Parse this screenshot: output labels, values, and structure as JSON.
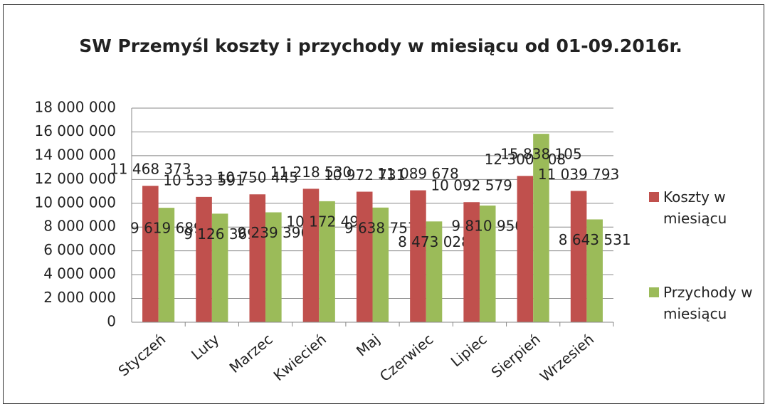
{
  "chart_data": {
    "type": "bar",
    "title": "SW Przemyśl  koszty i przychody w miesiącu od 01-09.2016r.",
    "categories": [
      "Styczeń",
      "Luty",
      "Marzec",
      "Kwiecień",
      "Maj",
      "Czerwiec",
      "Lipiec",
      "Sierpień",
      "Wrzesień"
    ],
    "series": [
      {
        "name": "Koszty w miesiącu",
        "color": "#c0504d",
        "values": [
          11468373,
          10533591,
          10750445,
          11218530,
          10972731,
          11089678,
          10092579,
          12300008,
          11039793
        ],
        "value_labels": [
          "11 468 373",
          "10 533 591",
          "10 750 445",
          "11 218 530",
          "10 972 731",
          "11 089 678",
          "10 092 579",
          "12 300 008",
          "11 039 793"
        ]
      },
      {
        "name": "Przychody w miesiącu",
        "color": "#9bbb59",
        "values": [
          9619689,
          9126369,
          9239396,
          10172491,
          9638757,
          8473028,
          9810950,
          15838105,
          8643531
        ],
        "value_labels": [
          "9 619 689",
          "9 126 369",
          "9 239 396",
          "10 172 491",
          "9 638 757",
          "8 473 028",
          "9 810 950",
          "15 838 105",
          "8 643 531"
        ]
      }
    ],
    "ylim": [
      0,
      18000000
    ],
    "yticks": [
      0,
      {
        "value": 2000000,
        "label": "2 000 000"
      },
      {
        "value": 4000000,
        "label": "4 000 000"
      },
      {
        "value": 6000000,
        "label": "6 000 000"
      },
      {
        "value": 8000000,
        "label": "8 000 000"
      },
      {
        "value": 10000000,
        "label": "10 000 000"
      },
      {
        "value": 12000000,
        "label": "12 000 000"
      },
      {
        "value": 14000000,
        "label": "14 000 000"
      },
      {
        "value": 16000000,
        "label": "16 000 000"
      },
      {
        "value": 18000000,
        "label": "18 000 000"
      }
    ],
    "grid": true,
    "legend": "right"
  }
}
